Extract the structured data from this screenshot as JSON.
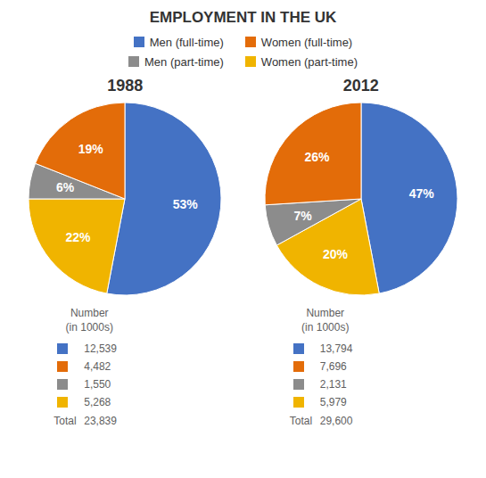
{
  "title": "EMPLOYMENT IN THE UK",
  "chart_data": [
    {
      "type": "pie",
      "title": "1988",
      "categories": [
        "Men (full-time)",
        "Women (part-time)",
        "Men (part-time)",
        "Women (full-time)"
      ],
      "values": [
        53,
        22,
        6,
        19
      ],
      "value_labels": [
        "53%",
        "22%",
        "6%",
        "19%"
      ],
      "colors": [
        "#4472c4",
        "#f0b400",
        "#8c8c8c",
        "#e36c09"
      ],
      "data_labels": true,
      "table": {
        "title": "Number\n(in 1000s)",
        "categories": [
          "Men (full-time)",
          "Women (full-time)",
          "Men (part-time)",
          "Women (part-time)"
        ],
        "values": [
          12539,
          4482,
          1550,
          5268
        ],
        "value_labels": [
          "12,539",
          "4,482",
          "1,550",
          "5,268"
        ],
        "total_label": "Total",
        "total": 23839,
        "total_value_label": "23,839"
      }
    },
    {
      "type": "pie",
      "title": "2012",
      "categories": [
        "Men (full-time)",
        "Women (part-time)",
        "Men (part-time)",
        "Women (full-time)"
      ],
      "values": [
        47,
        20,
        7,
        26
      ],
      "value_labels": [
        "47%",
        "20%",
        "7%",
        "26%"
      ],
      "colors": [
        "#4472c4",
        "#f0b400",
        "#8c8c8c",
        "#e36c09"
      ],
      "data_labels": true,
      "table": {
        "title": "Number\n(in 1000s)",
        "categories": [
          "Men (full-time)",
          "Women (full-time)",
          "Men (part-time)",
          "Women (part-time)"
        ],
        "values": [
          13794,
          7696,
          2131,
          5979
        ],
        "value_labels": [
          "13,794",
          "7,696",
          "2,131",
          "5,979"
        ],
        "total_label": "Total",
        "total": 29600,
        "total_value_label": "29,600"
      }
    }
  ]
}
